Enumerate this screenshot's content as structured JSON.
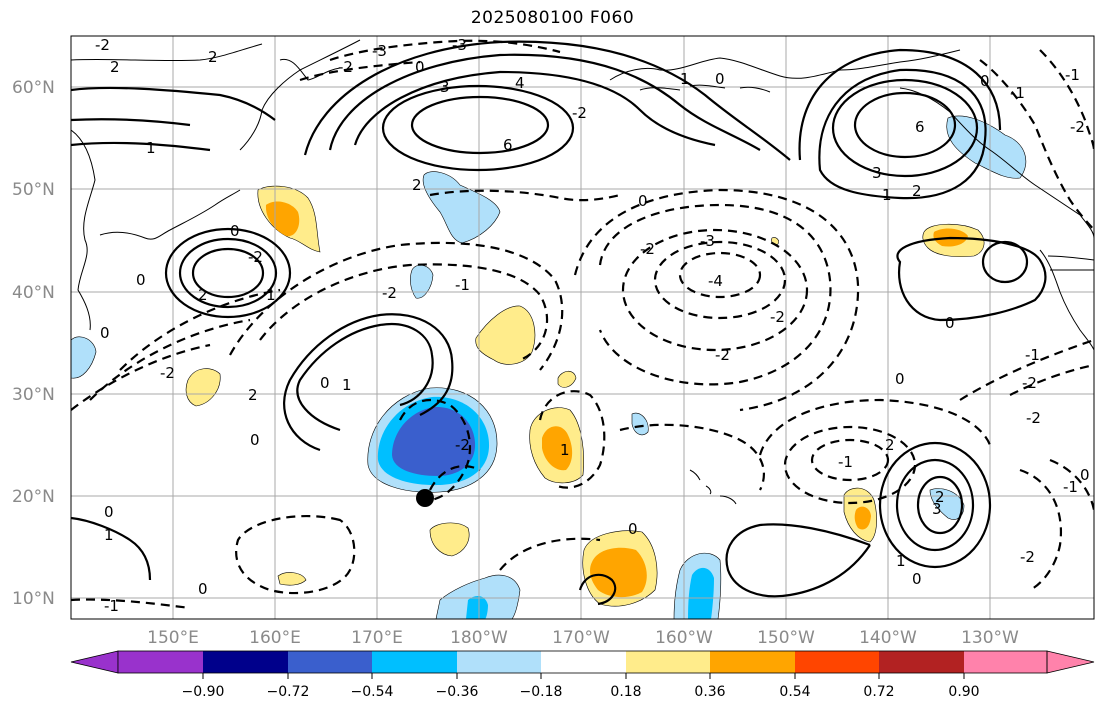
{
  "title": "2025080100 F060",
  "lat_labels": [
    "60°N",
    "50°N",
    "40°N",
    "30°N",
    "20°N",
    "10°N"
  ],
  "lon_labels": [
    "150°E",
    "160°E",
    "170°E",
    "180°W",
    "170°W",
    "160°W",
    "150°W",
    "140°W",
    "130°W"
  ],
  "colorbar": {
    "tick_labels": [
      "−0.90",
      "−0.72",
      "−0.54",
      "−0.36",
      "−0.18",
      "0.18",
      "0.36",
      "0.54",
      "0.72",
      "0.90"
    ],
    "colors": [
      "#9932cc",
      "#00008b",
      "#3a5fcd",
      "#00bfff",
      "#b0e0fa",
      "#ffffff",
      "#ffec8b",
      "#ffa500",
      "#ff4500",
      "#b22222",
      "#ff82ab"
    ]
  },
  "contour_labels": [
    "-3",
    "0",
    "-3",
    "-2",
    "3",
    "4",
    "6",
    "2",
    "2",
    "1",
    "-2",
    "2",
    "0",
    "1",
    "0",
    "-2",
    "-1",
    "6",
    "3",
    "2",
    "1",
    "0",
    "-1",
    "-2",
    "0",
    "-2",
    "2",
    "1",
    "0",
    "-2",
    "-4",
    "-3",
    "-2",
    "-1",
    "-2",
    "0",
    "-2",
    "0",
    "1",
    "0",
    "2",
    "-2",
    "1",
    "0",
    "-2",
    "-2",
    "-1",
    "-2",
    "0",
    "-1",
    "0",
    "2",
    "3",
    "2",
    "1",
    "0",
    "-2",
    "-1",
    "0",
    "1",
    "0",
    "0",
    "-1"
  ],
  "marker": {
    "lon": 175.0,
    "lat": 20.0
  }
}
